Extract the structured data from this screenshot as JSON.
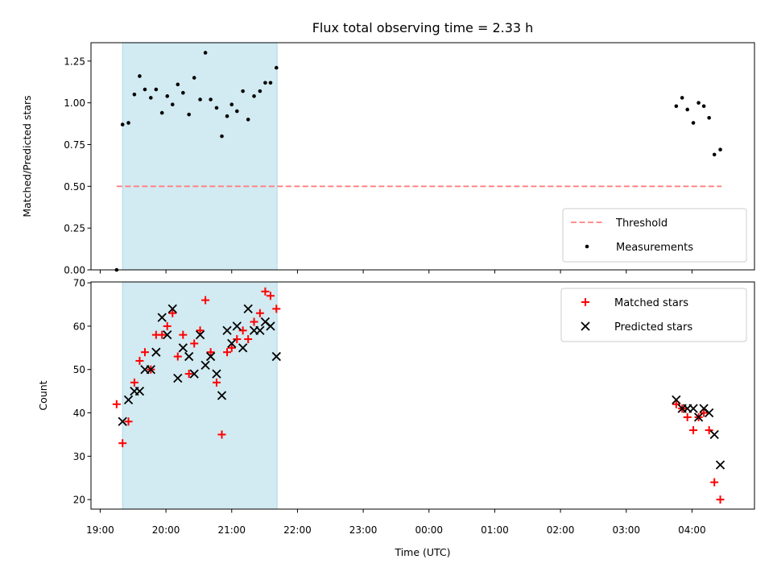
{
  "chart_data": {
    "title": "Flux total observing time = 2.33 h",
    "xlabel": "Time (UTC)",
    "x_ticks": [
      "19:00",
      "20:00",
      "21:00",
      "22:00",
      "23:00",
      "00:00",
      "01:00",
      "02:00",
      "03:00",
      "04:00"
    ],
    "x_range_hours": [
      18.86,
      28.95
    ],
    "shaded_interval_hours": [
      19.34,
      21.69
    ],
    "shade_color": "#add8e6",
    "panels": [
      {
        "type": "scatter",
        "ylabel": "Matched/Predicted stars",
        "ylim": [
          0,
          1.36
        ],
        "y_ticks": [
          "0.00",
          "0.25",
          "0.50",
          "0.75",
          "1.00",
          "1.25"
        ],
        "legend_position": "lower-right",
        "threshold": {
          "name": "Threshold",
          "value": 0.5,
          "x_range": [
            19.25,
            28.45
          ],
          "color": "#ff7f7f",
          "style": "dashed"
        },
        "series": [
          {
            "name": "Measurements",
            "marker": "dot",
            "color": "#000000",
            "points": [
              [
                19.25,
                0.0
              ],
              [
                19.34,
                0.87
              ],
              [
                19.43,
                0.88
              ],
              [
                19.52,
                1.05
              ],
              [
                19.6,
                1.16
              ],
              [
                19.68,
                1.08
              ],
              [
                19.77,
                1.03
              ],
              [
                19.85,
                1.08
              ],
              [
                19.94,
                0.94
              ],
              [
                20.02,
                1.04
              ],
              [
                20.1,
                0.99
              ],
              [
                20.18,
                1.11
              ],
              [
                20.26,
                1.06
              ],
              [
                20.35,
                0.93
              ],
              [
                20.43,
                1.15
              ],
              [
                20.52,
                1.02
              ],
              [
                20.6,
                1.3
              ],
              [
                20.68,
                1.02
              ],
              [
                20.77,
                0.97
              ],
              [
                20.85,
                0.8
              ],
              [
                20.93,
                0.92
              ],
              [
                21.0,
                0.99
              ],
              [
                21.08,
                0.95
              ],
              [
                21.17,
                1.07
              ],
              [
                21.25,
                0.9
              ],
              [
                21.34,
                1.04
              ],
              [
                21.43,
                1.07
              ],
              [
                21.51,
                1.12
              ],
              [
                21.59,
                1.12
              ],
              [
                21.68,
                1.21
              ],
              [
                27.76,
                0.98
              ],
              [
                27.85,
                1.03
              ],
              [
                27.93,
                0.96
              ],
              [
                28.02,
                0.88
              ],
              [
                28.1,
                1.0
              ],
              [
                28.18,
                0.98
              ],
              [
                28.26,
                0.91
              ],
              [
                28.34,
                0.69
              ],
              [
                28.43,
                0.72
              ]
            ]
          }
        ]
      },
      {
        "type": "scatter",
        "ylabel": "Count",
        "ylim": [
          17.8,
          70.2
        ],
        "y_ticks": [
          "20",
          "30",
          "40",
          "50",
          "60",
          "70"
        ],
        "legend_position": "upper-right",
        "series": [
          {
            "name": "Matched stars",
            "marker": "plus",
            "color": "#ff0000",
            "points": [
              [
                19.25,
                42
              ],
              [
                19.34,
                33
              ],
              [
                19.43,
                38
              ],
              [
                19.52,
                47
              ],
              [
                19.6,
                52
              ],
              [
                19.68,
                54
              ],
              [
                19.77,
                50
              ],
              [
                19.85,
                58
              ],
              [
                19.94,
                58
              ],
              [
                20.02,
                60
              ],
              [
                20.1,
                63
              ],
              [
                20.18,
                53
              ],
              [
                20.26,
                58
              ],
              [
                20.35,
                49
              ],
              [
                20.43,
                56
              ],
              [
                20.52,
                59
              ],
              [
                20.6,
                66
              ],
              [
                20.68,
                54
              ],
              [
                20.77,
                47
              ],
              [
                20.85,
                35
              ],
              [
                20.93,
                54
              ],
              [
                21.0,
                55
              ],
              [
                21.08,
                57
              ],
              [
                21.17,
                59
              ],
              [
                21.25,
                57
              ],
              [
                21.34,
                61
              ],
              [
                21.43,
                63
              ],
              [
                21.51,
                68
              ],
              [
                21.59,
                67
              ],
              [
                21.68,
                64
              ],
              [
                27.76,
                42
              ],
              [
                27.85,
                41
              ],
              [
                27.93,
                39
              ],
              [
                28.02,
                36
              ],
              [
                28.1,
                39
              ],
              [
                28.18,
                40
              ],
              [
                28.26,
                36
              ],
              [
                28.34,
                24
              ],
              [
                28.43,
                20
              ]
            ]
          },
          {
            "name": "Predicted stars",
            "marker": "x",
            "color": "#000000",
            "points": [
              [
                19.34,
                38
              ],
              [
                19.43,
                43
              ],
              [
                19.52,
                45
              ],
              [
                19.6,
                45
              ],
              [
                19.68,
                50
              ],
              [
                19.77,
                50
              ],
              [
                19.85,
                54
              ],
              [
                19.94,
                62
              ],
              [
                20.02,
                58
              ],
              [
                20.1,
                64
              ],
              [
                20.18,
                48
              ],
              [
                20.26,
                55
              ],
              [
                20.35,
                53
              ],
              [
                20.43,
                49
              ],
              [
                20.52,
                58
              ],
              [
                20.6,
                51
              ],
              [
                20.68,
                53
              ],
              [
                20.77,
                49
              ],
              [
                20.85,
                44
              ],
              [
                20.93,
                59
              ],
              [
                21.0,
                56
              ],
              [
                21.08,
                60
              ],
              [
                21.17,
                55
              ],
              [
                21.25,
                64
              ],
              [
                21.34,
                59
              ],
              [
                21.43,
                59
              ],
              [
                21.51,
                61
              ],
              [
                21.59,
                60
              ],
              [
                21.68,
                53
              ],
              [
                27.76,
                43
              ],
              [
                27.85,
                41
              ],
              [
                27.93,
                41
              ],
              [
                28.02,
                41
              ],
              [
                28.1,
                39
              ],
              [
                28.18,
                41
              ],
              [
                28.26,
                40
              ],
              [
                28.34,
                35
              ],
              [
                28.43,
                28
              ]
            ]
          }
        ]
      }
    ]
  }
}
